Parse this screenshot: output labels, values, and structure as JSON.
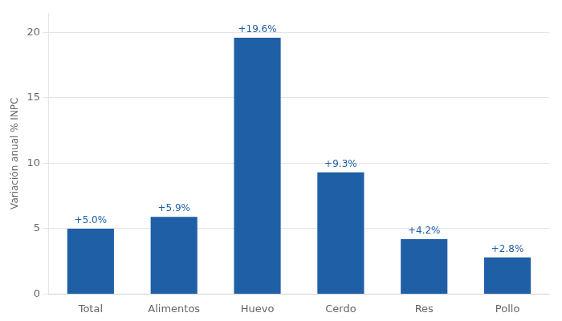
{
  "chart_data": {
    "type": "bar",
    "categories": [
      "Total",
      "Alimentos",
      "Huevo",
      "Cerdo",
      "Res",
      "Pollo"
    ],
    "values": [
      5.0,
      5.9,
      19.6,
      9.3,
      4.2,
      2.8
    ],
    "value_labels": [
      "+5.0%",
      "+5.9%",
      "+19.6%",
      "+9.3%",
      "+4.2%",
      "+2.8%"
    ],
    "data_labels": true,
    "color": "#1f5fa6",
    "ylabel": "Variación anual % INPC",
    "ylim": [
      0,
      21.5
    ],
    "yticks": [
      0,
      5,
      10,
      15,
      20
    ],
    "grid": true
  }
}
